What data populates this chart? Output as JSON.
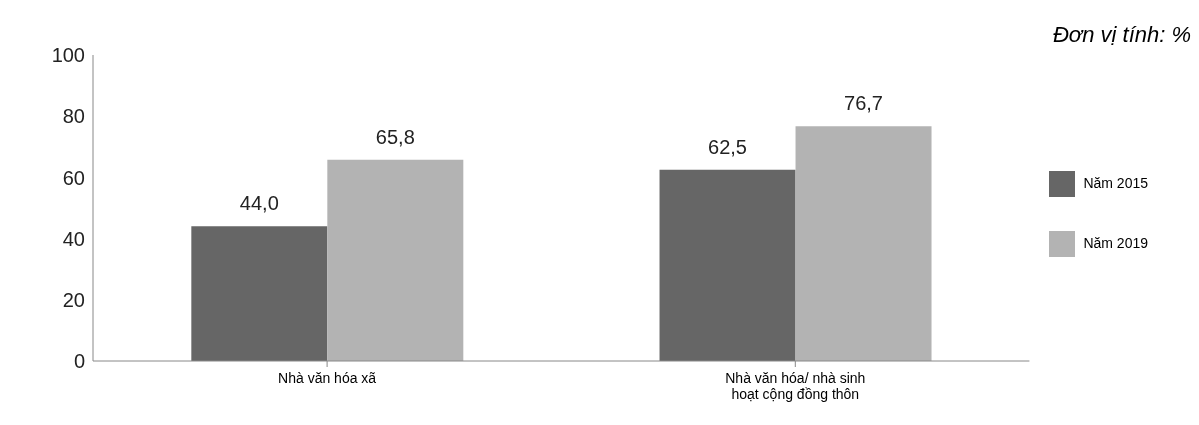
{
  "chart_data": {
    "type": "bar",
    "annotations": [
      "Đơn vị tính: %"
    ],
    "categories": [
      "Nhà văn hóa xã",
      "Nhà văn hóa/ nhà sinh hoạt cộng đồng thôn"
    ],
    "series": [
      {
        "name": "Năm 2015",
        "color": "#666666",
        "values": [
          44.0,
          62.5
        ],
        "value_labels": [
          "44,0",
          "62,5"
        ]
      },
      {
        "name": "Năm 2019",
        "color": "#b3b3b3",
        "values": [
          65.8,
          76.7
        ],
        "value_labels": [
          "65,8",
          "76,7"
        ]
      }
    ],
    "ylim": [
      0,
      100
    ],
    "yticks": [
      0,
      20,
      40,
      60,
      80,
      100
    ],
    "grid": false,
    "legend": "right"
  }
}
